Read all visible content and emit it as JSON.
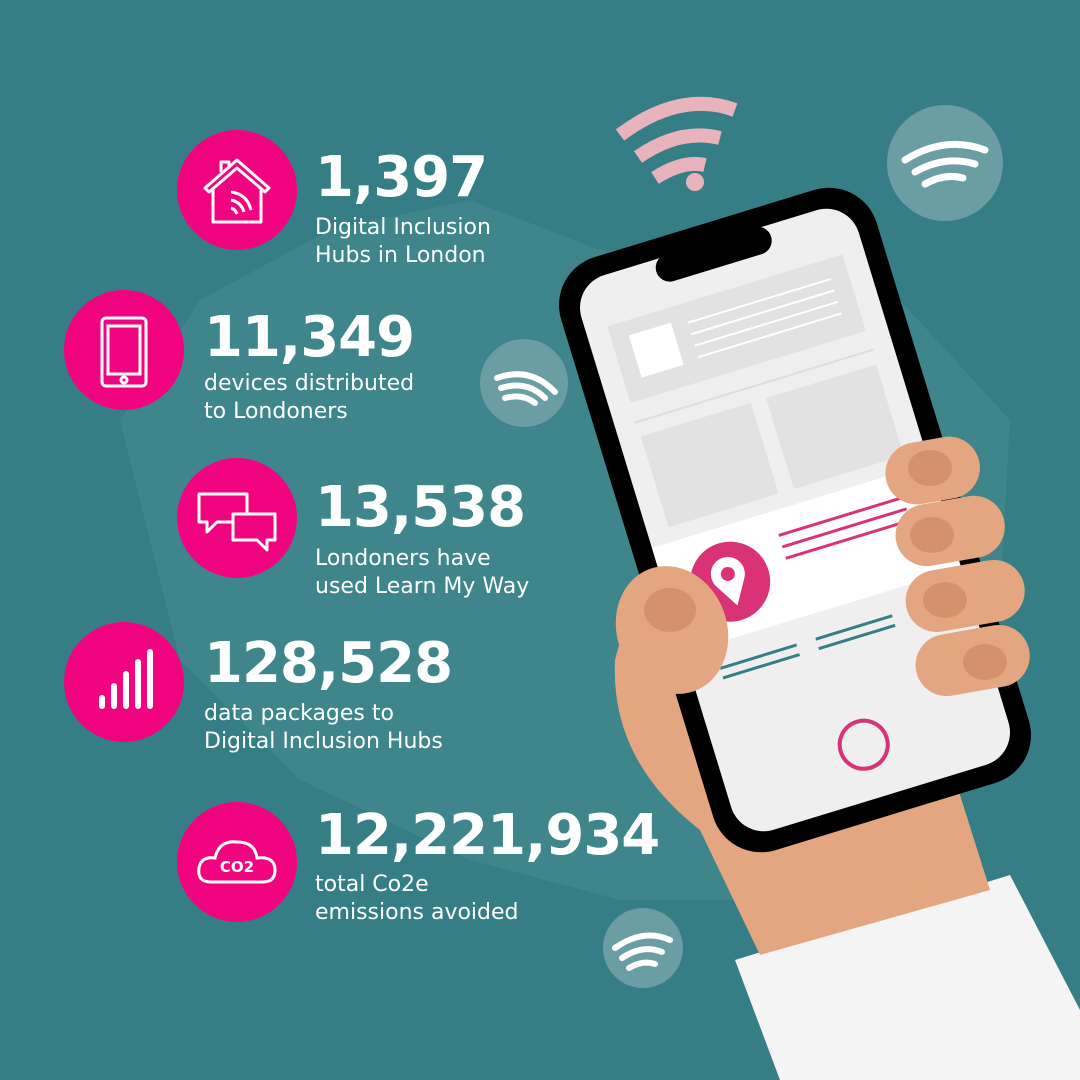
{
  "colors": {
    "background": "#367e86",
    "accent": "#f0047f",
    "skin": "#e3a680",
    "sleeve": "#f4f4f4",
    "pin": "#d93277"
  },
  "stats": [
    {
      "icon": "house-wifi-icon",
      "value": "1,397",
      "label_line1": "Digital Inclusion",
      "label_line2": "Hubs in London"
    },
    {
      "icon": "tablet-icon",
      "value": "11,349",
      "label_line1": "devices distributed",
      "label_line2": "to Londoners"
    },
    {
      "icon": "chat-bubbles-icon",
      "value": "13,538",
      "label_line1": "Londoners have",
      "label_line2": "used Learn My Way"
    },
    {
      "icon": "signal-bars-icon",
      "value": "128,528",
      "label_line1": "data packages to",
      "label_line2": "Digital Inclusion Hubs"
    },
    {
      "icon": "co2-cloud-icon",
      "value": "12,221,934",
      "label_line1": "total Co2e",
      "label_line2": "emissions avoided",
      "icon_text": "CO2"
    }
  ]
}
